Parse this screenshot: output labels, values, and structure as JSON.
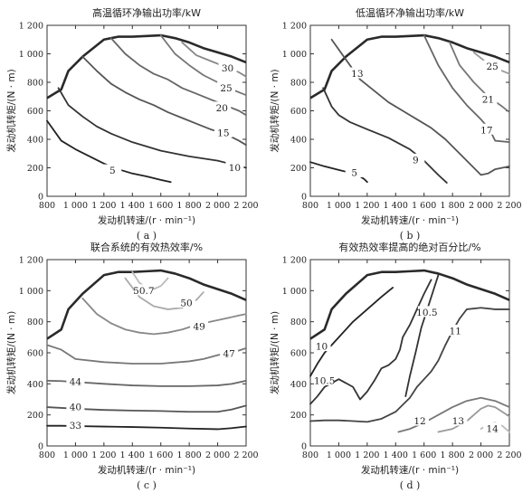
{
  "chart_data": [
    {
      "type": "line",
      "subtype": "contour",
      "caption": "( a )",
      "title": "高温循环净输出功率/kW",
      "xlabel": "发动机转速/(r · min⁻¹)",
      "ylabel": "发动机转矩/(N · m)",
      "xlim": [
        800,
        2200
      ],
      "ylim": [
        0,
        1200
      ],
      "xticks": [
        800,
        1000,
        1200,
        1400,
        1600,
        1800,
        2000,
        2200
      ],
      "xtick_labels": [
        "800",
        "1 000",
        "1 200",
        "1 400",
        "1 600",
        "1 800",
        "2 000",
        "2 200"
      ],
      "yticks": [
        0,
        200,
        400,
        600,
        800,
        1000,
        1200
      ],
      "ytick_labels": [
        "0",
        "200",
        "400",
        "600",
        "800",
        "1 000",
        "1 200"
      ],
      "boundary": {
        "x": [
          800,
          900,
          950,
          1050,
          1200,
          1300,
          1400,
          1500,
          1600,
          1700,
          1800,
          1900,
          2000,
          2100,
          2200
        ],
        "y": [
          690,
          750,
          880,
          980,
          1100,
          1120,
          1120,
          1125,
          1130,
          1110,
          1080,
          1040,
          1010,
          980,
          940
        ]
      },
      "series": [
        {
          "name": "5",
          "color": "#222222",
          "label_at": [
            1260,
            180
          ],
          "x": [
            800,
            900,
            1000,
            1100,
            1200,
            1300,
            1400,
            1500,
            1600,
            1670
          ],
          "y": [
            530,
            390,
            330,
            280,
            230,
            190,
            160,
            140,
            115,
            100
          ]
        },
        {
          "name": "10",
          "color": "#333333",
          "label_at": [
            2120,
            200
          ],
          "x": [
            880,
            950,
            1050,
            1150,
            1250,
            1400,
            1600,
            1800,
            2000,
            2120,
            2200
          ],
          "y": [
            760,
            640,
            560,
            490,
            440,
            380,
            320,
            280,
            250,
            220,
            200
          ]
        },
        {
          "name": "15",
          "color": "#555555",
          "label_at": [
            2040,
            445
          ],
          "x": [
            1050,
            1150,
            1250,
            1350,
            1450,
            1550,
            1650,
            1750,
            1850,
            1950,
            2050,
            2150,
            2200
          ],
          "y": [
            980,
            880,
            790,
            730,
            680,
            640,
            590,
            550,
            510,
            470,
            440,
            390,
            360
          ]
        },
        {
          "name": "20",
          "color": "#666666",
          "label_at": [
            2030,
            620
          ],
          "x": [
            1250,
            1350,
            1450,
            1550,
            1650,
            1750,
            1850,
            1950,
            2050,
            2150,
            2200
          ],
          "y": [
            1110,
            1000,
            920,
            860,
            820,
            760,
            720,
            680,
            640,
            600,
            570
          ]
        },
        {
          "name": "25",
          "color": "#777777",
          "label_at": [
            2060,
            760
          ],
          "x": [
            1600,
            1700,
            1800,
            1900,
            2000,
            2100,
            2200
          ],
          "y": [
            1130,
            1000,
            920,
            850,
            800,
            750,
            710
          ]
        },
        {
          "name": "30",
          "color": "#888888",
          "label_at": [
            2070,
            900
          ],
          "x": [
            1750,
            1850,
            1950,
            2050,
            2150,
            2200
          ],
          "y": [
            1080,
            990,
            950,
            910,
            870,
            840
          ]
        }
      ]
    },
    {
      "type": "line",
      "subtype": "contour",
      "caption": "( b )",
      "title": "低温循环净输出功率/kW",
      "xlabel": "发动机转速/(r · min⁻¹)",
      "ylabel": "发动机转矩/(N · m)",
      "xlim": [
        800,
        2200
      ],
      "ylim": [
        0,
        1200
      ],
      "xticks": [
        800,
        1000,
        1200,
        1400,
        1600,
        1800,
        2000,
        2200
      ],
      "xtick_labels": [
        "800",
        "1 000",
        "1 200",
        "1 400",
        "1 600",
        "1 800",
        "2 000",
        "2 200"
      ],
      "yticks": [
        0,
        200,
        400,
        600,
        800,
        1000,
        1200
      ],
      "ytick_labels": [
        "0",
        "200",
        "400",
        "600",
        "800",
        "1 000",
        "1 200"
      ],
      "boundary": {
        "x": [
          800,
          900,
          950,
          1050,
          1200,
          1300,
          1400,
          1500,
          1600,
          1700,
          1800,
          1900,
          2000,
          2100,
          2200
        ],
        "y": [
          690,
          750,
          880,
          980,
          1100,
          1120,
          1120,
          1125,
          1130,
          1110,
          1080,
          1040,
          1010,
          980,
          940
        ]
      },
      "series": [
        {
          "name": "5",
          "color": "#222222",
          "label_at": [
            1110,
            165
          ],
          "x": [
            800,
            900,
            1000,
            1100,
            1150,
            1180,
            1200
          ],
          "y": [
            240,
            210,
            185,
            160,
            140,
            120,
            100
          ]
        },
        {
          "name": "9",
          "color": "#333333",
          "label_at": [
            1540,
            255
          ],
          "x": [
            890,
            950,
            1000,
            1080,
            1200,
            1350,
            1500,
            1600,
            1700,
            1760
          ],
          "y": [
            760,
            630,
            570,
            520,
            470,
            410,
            330,
            250,
            150,
            95
          ]
        },
        {
          "name": "13",
          "color": "#555555",
          "label_at": [
            1130,
            860
          ],
          "x": [
            950,
            1050,
            1150,
            1250,
            1350,
            1450,
            1550,
            1650,
            1750,
            1850,
            1950,
            2000,
            2050,
            2100,
            2200
          ],
          "y": [
            1100,
            960,
            820,
            740,
            660,
            600,
            540,
            480,
            400,
            300,
            200,
            150,
            160,
            190,
            210
          ]
        },
        {
          "name": "17",
          "color": "#666666",
          "label_at": [
            2040,
            465
          ],
          "x": [
            1600,
            1700,
            1800,
            1900,
            2000,
            2060,
            2100,
            2200
          ],
          "y": [
            1130,
            920,
            760,
            640,
            540,
            470,
            390,
            380
          ]
        },
        {
          "name": "21",
          "color": "#777777",
          "label_at": [
            2050,
            680
          ],
          "x": [
            1780,
            1850,
            1950,
            2050,
            2150,
            2200
          ],
          "y": [
            1080,
            920,
            800,
            700,
            630,
            590
          ]
        },
        {
          "name": "25",
          "color": "#999999",
          "label_at": [
            2080,
            910
          ],
          "x": [
            1950,
            2050,
            2150,
            2200
          ],
          "y": [
            1010,
            930,
            880,
            860
          ]
        }
      ]
    },
    {
      "type": "line",
      "subtype": "contour",
      "caption": "( c )",
      "title": "联合系统的有效热效率/%",
      "xlabel": "发动机转速/(r · min⁻¹)",
      "ylabel": "发动机转矩/(N · m)",
      "xlim": [
        800,
        2200
      ],
      "ylim": [
        0,
        1200
      ],
      "xticks": [
        800,
        1000,
        1200,
        1400,
        1600,
        1800,
        2000,
        2200
      ],
      "xtick_labels": [
        "800",
        "1 000",
        "1 200",
        "1 400",
        "1 600",
        "1 800",
        "2 000",
        "2 200"
      ],
      "yticks": [
        0,
        200,
        400,
        600,
        800,
        1000,
        1200
      ],
      "ytick_labels": [
        "0",
        "200",
        "400",
        "600",
        "800",
        "1 000",
        "1 200"
      ],
      "boundary": {
        "x": [
          800,
          900,
          950,
          1050,
          1200,
          1300,
          1400,
          1500,
          1600,
          1700,
          1800,
          1900,
          2000,
          2100,
          2200
        ],
        "y": [
          690,
          750,
          880,
          980,
          1100,
          1120,
          1120,
          1125,
          1130,
          1110,
          1080,
          1040,
          1010,
          980,
          940
        ]
      },
      "series": [
        {
          "name": "33",
          "color": "#222222",
          "label_at": [
            1000,
            130
          ],
          "x": [
            800,
            900,
            1000,
            1200,
            1400,
            1600,
            1800,
            2000,
            2100,
            2200
          ],
          "y": [
            130,
            130,
            128,
            125,
            122,
            118,
            112,
            108,
            115,
            125
          ]
        },
        {
          "name": "40",
          "color": "#555555",
          "label_at": [
            1000,
            250
          ],
          "x": [
            800,
            900,
            1000,
            1200,
            1400,
            1600,
            1800,
            2000,
            2100,
            2200
          ],
          "y": [
            250,
            245,
            240,
            232,
            228,
            225,
            220,
            220,
            235,
            260
          ]
        },
        {
          "name": "44",
          "color": "#666666",
          "label_at": [
            1000,
            415
          ],
          "x": [
            800,
            900,
            1000,
            1200,
            1400,
            1600,
            1800,
            2000,
            2100,
            2200
          ],
          "y": [
            420,
            418,
            412,
            400,
            390,
            385,
            385,
            390,
            400,
            420
          ]
        },
        {
          "name": "47",
          "color": "#777777",
          "label_at": [
            2080,
            595
          ],
          "x": [
            800,
            900,
            1000,
            1200,
            1400,
            1600,
            1800,
            1900,
            2000,
            2100,
            2200
          ],
          "y": [
            650,
            620,
            560,
            540,
            530,
            530,
            545,
            560,
            585,
            600,
            630
          ]
        },
        {
          "name": "49",
          "color": "#888888",
          "label_at": [
            1870,
            770
          ],
          "x": [
            1050,
            1150,
            1250,
            1350,
            1450,
            1550,
            1650,
            1750,
            1850,
            1950,
            2050,
            2150,
            2200
          ],
          "y": [
            950,
            850,
            790,
            750,
            730,
            720,
            730,
            750,
            780,
            800,
            820,
            840,
            850
          ]
        },
        {
          "name": "50",
          "color": "#aaaaaa",
          "label_at": [
            1780,
            920
          ],
          "x": [
            1350,
            1450,
            1550,
            1650,
            1750,
            1850,
            1900
          ],
          "y": [
            1080,
            960,
            900,
            880,
            890,
            940,
            990
          ]
        },
        {
          "name": "50.7",
          "color": "#bbbbbb",
          "label_at": [
            1480,
            1000
          ],
          "x": [
            1400,
            1450,
            1500,
            1550,
            1600,
            1650
          ],
          "y": [
            1120,
            1050,
            1020,
            1010,
            1030,
            1080
          ]
        }
      ]
    },
    {
      "type": "line",
      "subtype": "contour",
      "caption": "( d )",
      "title": "有效热效率提高的绝对百分比/%",
      "xlabel": "发动机转速/(r · min⁻¹)",
      "ylabel": "发动机转矩/(N · m)",
      "xlim": [
        800,
        2200
      ],
      "ylim": [
        0,
        1200
      ],
      "xticks": [
        800,
        1000,
        1200,
        1400,
        1600,
        1800,
        2000,
        2200
      ],
      "xtick_labels": [
        "800",
        "1 000",
        "1 200",
        "1 400",
        "1 600",
        "1 800",
        "2 000",
        "2 200"
      ],
      "yticks": [
        0,
        200,
        400,
        600,
        800,
        1000,
        1200
      ],
      "ytick_labels": [
        "0",
        "200",
        "400",
        "600",
        "800",
        "1 000",
        "1 200"
      ],
      "boundary": {
        "x": [
          800,
          900,
          950,
          1050,
          1200,
          1300,
          1400,
          1500,
          1600,
          1700,
          1800,
          1900,
          2000,
          2100,
          2200
        ],
        "y": [
          690,
          750,
          880,
          980,
          1100,
          1120,
          1120,
          1125,
          1130,
          1110,
          1080,
          1040,
          1010,
          980,
          940
        ]
      },
      "series": [
        {
          "name": "10",
          "color": "#222222",
          "label_at": [
            880,
            640
          ],
          "x": [
            800,
            850,
            900,
            1000,
            1100,
            1200,
            1300,
            1380
          ],
          "y": [
            450,
            530,
            600,
            700,
            800,
            880,
            960,
            1020
          ]
        },
        {
          "name": "10.5",
          "color": "#333333",
          "label_at": [
            900,
            420
          ],
          "x": [
            800,
            850,
            900,
            1000,
            1100,
            1150,
            1200,
            1250,
            1300,
            1350,
            1400,
            1430,
            1450,
            1500,
            1550,
            1600,
            1650
          ],
          "y": [
            270,
            320,
            380,
            430,
            380,
            300,
            350,
            420,
            500,
            520,
            560,
            620,
            700,
            780,
            880,
            980,
            1070
          ]
        },
        {
          "name": "10.5",
          "color": "#333333",
          "label_at": [
            1620,
            860
          ],
          "x": [
            1470,
            1500,
            1540,
            1580,
            1640,
            1700
          ],
          "y": [
            320,
            450,
            600,
            760,
            930,
            1100
          ]
        },
        {
          "name": "11",
          "color": "#444444",
          "label_at": [
            1820,
            740
          ],
          "x": [
            800,
            900,
            1000,
            1100,
            1200,
            1300,
            1400,
            1500,
            1550,
            1600,
            1650,
            1700,
            1750,
            1800,
            1850,
            1900,
            2000,
            2100,
            2200
          ],
          "y": [
            160,
            165,
            165,
            160,
            155,
            175,
            220,
            310,
            380,
            430,
            480,
            550,
            650,
            740,
            820,
            880,
            890,
            880,
            880
          ]
        },
        {
          "name": "12",
          "color": "#777777",
          "label_at": [
            1570,
            160
          ],
          "x": [
            1420,
            1500,
            1600,
            1700,
            1800,
            1900,
            2000,
            2100,
            2200
          ],
          "y": [
            90,
            110,
            150,
            200,
            250,
            290,
            310,
            290,
            250
          ]
        },
        {
          "name": "13",
          "color": "#999999",
          "label_at": [
            1840,
            160
          ],
          "x": [
            1700,
            1800,
            1900,
            2000,
            2050,
            2100,
            2150,
            2200
          ],
          "y": [
            90,
            110,
            160,
            240,
            260,
            250,
            220,
            190
          ]
        },
        {
          "name": "14",
          "color": "#bbbbbb",
          "label_at": [
            2080,
            110
          ],
          "x": [
            2000,
            2050,
            2100,
            2150,
            2200
          ],
          "y": [
            110,
            140,
            150,
            130,
            90
          ]
        }
      ]
    }
  ]
}
